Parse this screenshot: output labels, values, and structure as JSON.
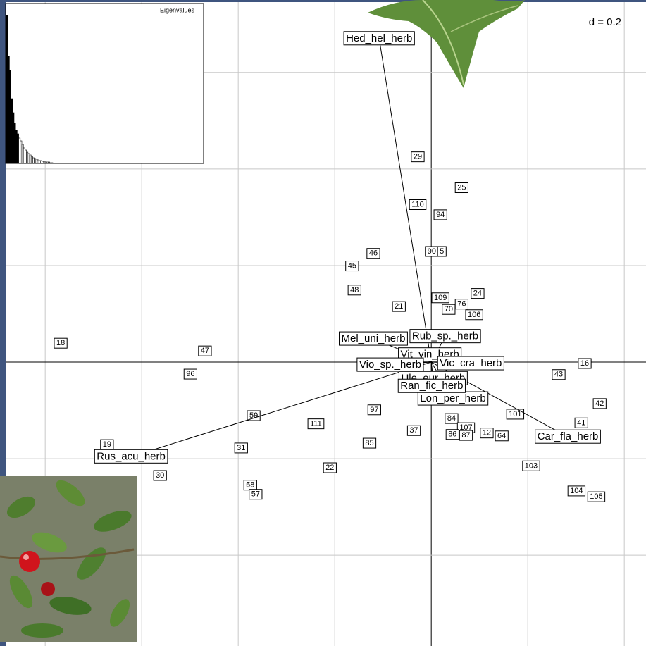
{
  "chart_data": [
    {
      "type": "scatter",
      "annotation": "d = 0.2",
      "xlim": [
        -0.882,
        0.445
      ],
      "ylim": [
        -0.588,
        0.75
      ],
      "xgrid": [
        -0.8,
        -0.6,
        -0.4,
        -0.2,
        0,
        0.2,
        0.4
      ],
      "ygrid": [
        0.6,
        0.4,
        0.2,
        0,
        -0.2,
        -0.4
      ],
      "labels": [
        "29",
        "25",
        "110",
        "94",
        "46",
        "45",
        "90",
        "5",
        "48",
        "21",
        "109",
        "24",
        "76",
        "70",
        "106",
        "18",
        "47",
        "96",
        "16",
        "43",
        "42",
        "41",
        "101",
        "59",
        "111",
        "97",
        "37",
        "85",
        "84",
        "107",
        "12",
        "64",
        "86",
        "87",
        "19",
        "31",
        "22",
        "103",
        "30",
        "58",
        "57",
        "104",
        "105"
      ],
      "x": [
        -0.028,
        0.063,
        -0.028,
        0.019,
        -0.12,
        -0.164,
        0.001,
        0.022,
        -0.159,
        -0.067,
        0.019,
        0.096,
        0.063,
        0.036,
        0.089,
        -0.768,
        -0.469,
        -0.499,
        0.318,
        0.264,
        0.349,
        0.311,
        0.174,
        -0.368,
        -0.239,
        -0.118,
        -0.036,
        -0.128,
        0.042,
        0.072,
        0.115,
        0.146,
        0.044,
        0.072,
        -0.672,
        -0.394,
        -0.21,
        0.207,
        -0.562,
        -0.375,
        -0.364,
        0.301,
        0.342
      ],
      "values": [
        0.425,
        0.361,
        0.326,
        0.305,
        0.225,
        0.199,
        0.229,
        0.229,
        0.149,
        0.115,
        0.133,
        0.142,
        0.12,
        0.109,
        0.098,
        0.039,
        0.023,
        -0.025,
        -0.003,
        -0.026,
        -0.086,
        -0.126,
        -0.108,
        -0.111,
        -0.128,
        -0.099,
        -0.142,
        -0.168,
        -0.117,
        -0.136,
        -0.147,
        -0.153,
        -0.15,
        -0.152,
        -0.171,
        -0.178,
        -0.219,
        -0.215,
        -0.235,
        -0.255,
        -0.274,
        -0.267,
        -0.279
      ],
      "arrows": {
        "labels": [
          "Hed_hel_herb",
          "Rus_acu_herb",
          "Car_fla_herb",
          "Mel_uni_herb",
          "Lon_per_herb",
          "Rub_sp._herb",
          "Vit_vin_herb",
          "Vio_sp._herb",
          "Vic_cra_herb",
          "Ule_eur_herb",
          "Ran_fic_herb"
        ],
        "x": [
          -0.108,
          -0.622,
          0.283,
          -0.12,
          0.045,
          0.029,
          -0.003,
          -0.085,
          0.082,
          0.004,
          0.001
        ],
        "values": [
          0.67,
          -0.196,
          -0.155,
          0.048,
          -0.076,
          0.053,
          0.015,
          -0.006,
          -0.003,
          -0.034,
          -0.05
        ]
      }
    },
    {
      "type": "bar",
      "title": "Eigenvalues",
      "ylim": [
        0,
        227
      ],
      "values": [
        210,
        152,
        132,
        92,
        72,
        57,
        47,
        42,
        36,
        32,
        27,
        22,
        19,
        16,
        14,
        12,
        10,
        8,
        7,
        6,
        5,
        4,
        4,
        3,
        3,
        2,
        2,
        2,
        1,
        1
      ]
    }
  ]
}
